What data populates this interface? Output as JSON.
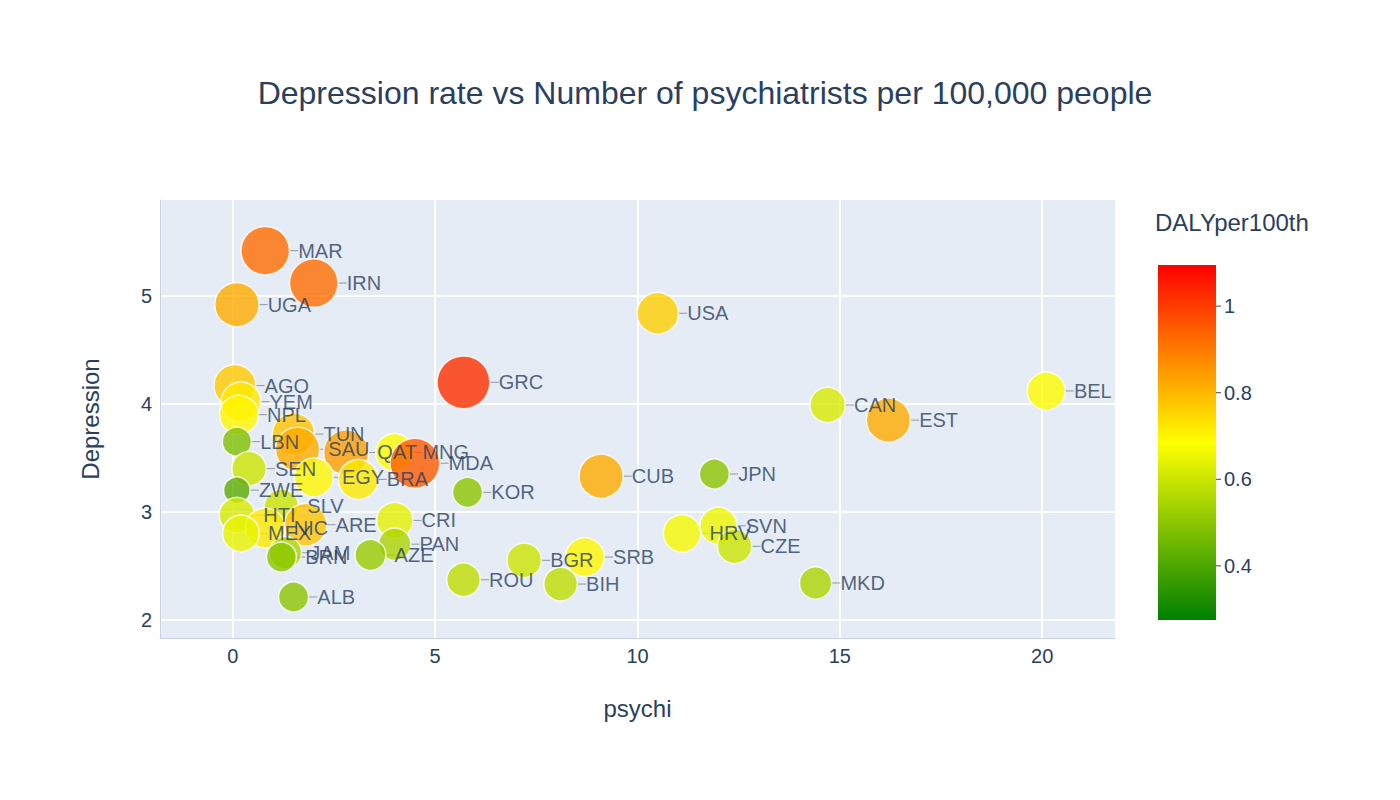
{
  "chart_data": {
    "type": "scatter",
    "title": "Depression rate vs Number of psychiatrists per 100,000 people",
    "x_label": "psychi",
    "y_label": "Depression",
    "marker": "circle",
    "grid": true,
    "xlim": [
      -1.8,
      21.8
    ],
    "xticks": [
      0,
      5,
      10,
      15,
      20
    ],
    "ylim": [
      1.83,
      5.89
    ],
    "yticks": [
      2,
      3,
      4,
      5
    ],
    "labels": [
      "MAR",
      "IRN",
      "UGA",
      "USA",
      "GRC",
      "AGO",
      "YEM",
      "NPL",
      "LBN",
      "CAN",
      "BEL",
      "EST",
      "TUN",
      "SAU",
      "QAT",
      "MNG",
      "MDA",
      "BRA",
      "EGY",
      "KOR",
      "CUB",
      "JPN",
      "SEN",
      "ZWE",
      "HTI",
      "SLV",
      "NIC",
      "ARE",
      "MEX",
      "JAM",
      "BRN",
      "CRI",
      "PAN",
      "AZE",
      "ALB",
      "ROU",
      "BGR",
      "SRB",
      "BIH",
      "HRV",
      "SVN",
      "CZE",
      "MKD"
    ],
    "x": [
      0.8,
      2.0,
      0.1,
      10.5,
      5.7,
      0.05,
      0.2,
      0.15,
      0.1,
      14.7,
      20.1,
      16.2,
      1.5,
      1.6,
      2.8,
      4.0,
      4.5,
      3.1,
      2.0,
      5.8,
      9.1,
      11.9,
      0.4,
      0.1,
      0.1,
      1.2,
      0.8,
      1.8,
      0.2,
      1.3,
      1.2,
      4.0,
      4.0,
      3.4,
      1.5,
      5.7,
      7.2,
      8.7,
      8.1,
      11.1,
      12.0,
      12.4,
      14.4
    ],
    "y": [
      5.42,
      5.12,
      4.92,
      4.84,
      4.2,
      4.17,
      4.02,
      3.9,
      3.65,
      3.99,
      4.12,
      3.85,
      3.72,
      3.58,
      3.55,
      3.55,
      3.45,
      3.3,
      3.32,
      3.18,
      3.33,
      3.35,
      3.4,
      3.2,
      2.97,
      3.05,
      2.85,
      2.88,
      2.8,
      2.62,
      2.58,
      2.92,
      2.7,
      2.6,
      2.21,
      2.37,
      2.55,
      2.58,
      2.33,
      2.8,
      2.87,
      2.68,
      2.34
    ],
    "DALYper100th": [
      0.92,
      0.92,
      0.82,
      0.76,
      1.02,
      0.77,
      0.72,
      0.7,
      0.48,
      0.62,
      0.68,
      0.82,
      0.78,
      0.82,
      0.84,
      0.68,
      0.95,
      0.72,
      0.7,
      0.5,
      0.82,
      0.5,
      0.6,
      0.42,
      0.62,
      0.6,
      0.72,
      0.78,
      0.65,
      0.55,
      0.5,
      0.64,
      0.55,
      0.52,
      0.5,
      0.58,
      0.6,
      0.7,
      0.58,
      0.67,
      0.66,
      0.6,
      0.55
    ],
    "colorbar": {
      "title": "DALYper100th",
      "range": [
        0.275,
        1.095
      ],
      "ticks": [
        0.4,
        0.6,
        0.8,
        1
      ],
      "colors": [
        "#008000",
        "#ffff00",
        "#ff0000"
      ]
    }
  }
}
